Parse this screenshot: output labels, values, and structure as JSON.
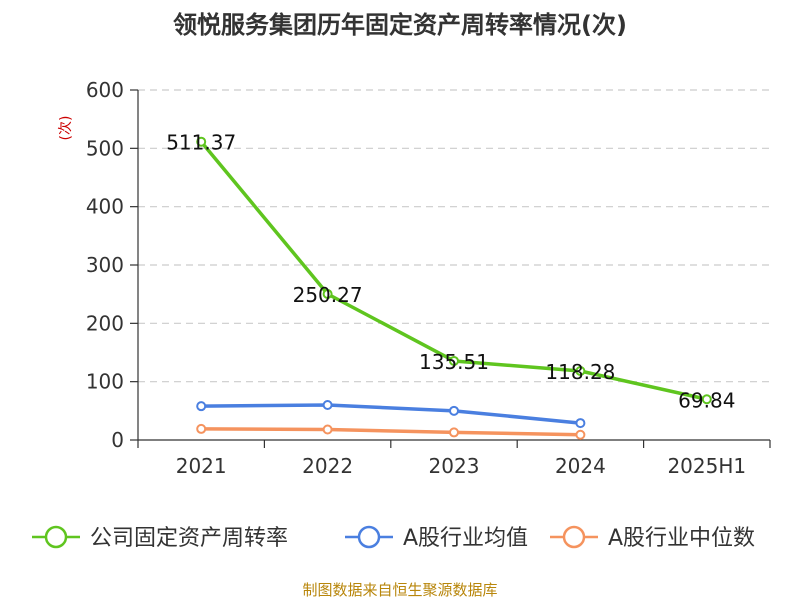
{
  "chart_data": {
    "type": "line",
    "title": "领悦服务集团历年固定资产周转率情况(次)",
    "ylabel": "(次)",
    "categories": [
      "2021",
      "2022",
      "2023",
      "2024",
      "2025H1"
    ],
    "ylim": [
      0,
      600
    ],
    "yticks": [
      0,
      100,
      200,
      300,
      400,
      500,
      600
    ],
    "grid": true,
    "legend_position": "bottom",
    "series": [
      {
        "name": "公司固定资产周转率",
        "color": "#5fc51f",
        "values": [
          511.37,
          250.27,
          135.51,
          118.28,
          69.84
        ],
        "labels": [
          "511.37",
          "250.27",
          "135.51",
          "118.28",
          "69.84"
        ]
      },
      {
        "name": "A股行业均值",
        "color": "#4a7fe0",
        "values": [
          58,
          60,
          50,
          29,
          null
        ]
      },
      {
        "name": "A股行业中位数",
        "color": "#f5935e",
        "values": [
          19,
          18,
          13,
          9,
          null
        ]
      }
    ]
  },
  "source": "制图数据来自恒生聚源数据库"
}
